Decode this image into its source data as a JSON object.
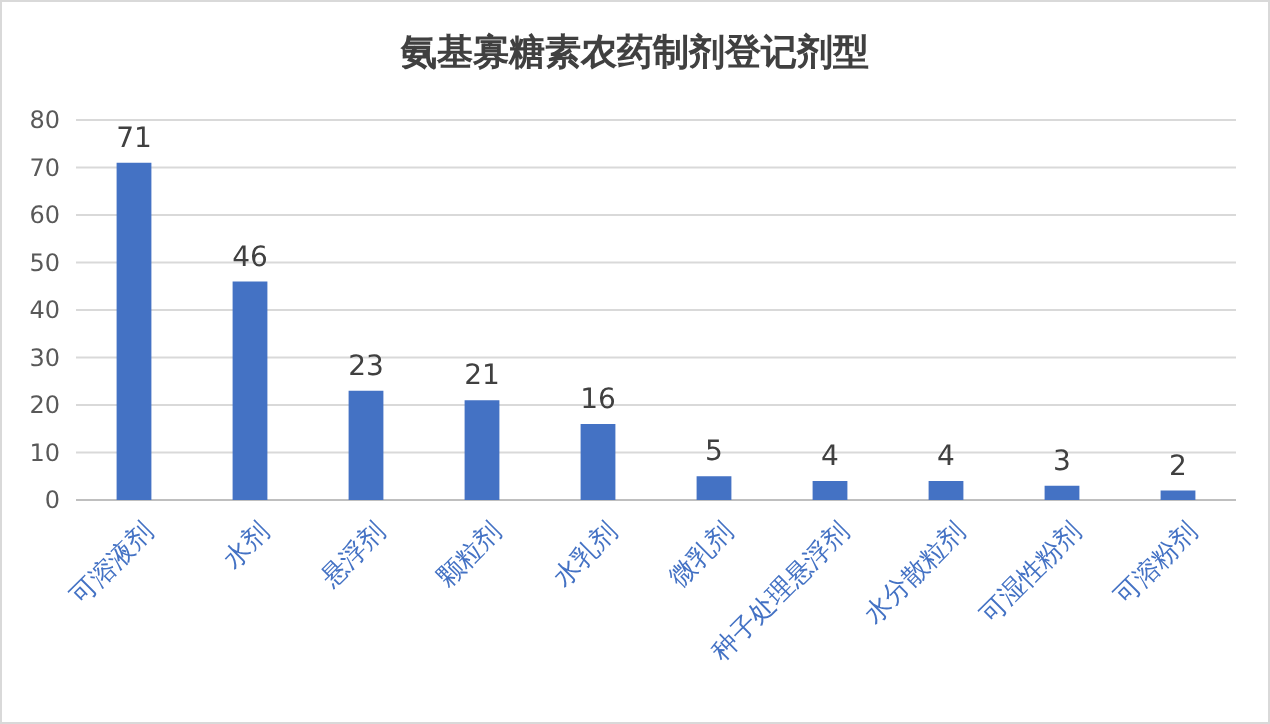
{
  "chart_data": {
    "type": "bar",
    "title": "氨基寡糖素农药制剂登记剂型",
    "categories": [
      "可溶液剂",
      "水剂",
      "悬浮剂",
      "颗粒剂",
      "水乳剂",
      "微乳剂",
      "种子处理悬浮剂",
      "水分散粒剂",
      "可湿性粉剂",
      "可溶粉剂"
    ],
    "values": [
      71,
      46,
      23,
      21,
      16,
      5,
      4,
      4,
      3,
      2
    ],
    "color": "#4472c4",
    "ylim": [
      0,
      80
    ],
    "yticks": [
      0,
      10,
      20,
      30,
      40,
      50,
      60,
      70,
      80
    ],
    "grid": "y",
    "data_labels": true
  }
}
